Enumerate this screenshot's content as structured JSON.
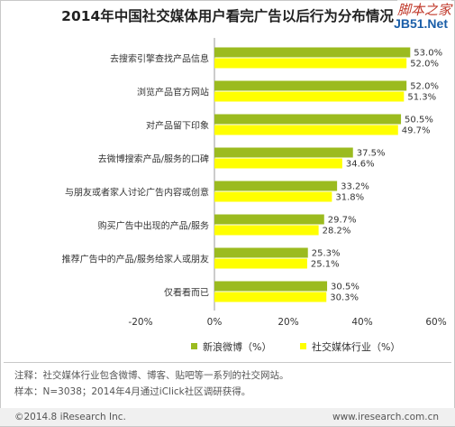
{
  "watermark": {
    "line1": "脚本之家",
    "line2": "JB51.Net"
  },
  "chart_data": {
    "type": "bar",
    "orientation": "horizontal",
    "title": "2014年中国社交媒体用户看完广告以后行为分布情况",
    "categories": [
      "去搜索引擎查找产品信息",
      "浏览产品官方网站",
      "对产品留下印象",
      "去微博搜索产品/服务的口碑",
      "与朋友或者家人讨论广告内容或创意",
      "购买广告中出现的产品/服务",
      "推荐广告中的产品/服务给家人或朋友",
      "仅看看而已"
    ],
    "series": [
      {
        "name": "新浪微博（%）",
        "color": "#9bbb1f",
        "values": [
          53.0,
          52.0,
          50.5,
          37.5,
          33.2,
          29.7,
          25.3,
          30.5
        ],
        "labels": [
          "53.0%",
          "52.0%",
          "50.5%",
          "37.5%",
          "33.2%",
          "29.7%",
          "25.3%",
          "30.5%"
        ]
      },
      {
        "name": "社交媒体行业（%）",
        "color": "#ffff00",
        "values": [
          52.0,
          51.3,
          49.7,
          34.6,
          31.8,
          28.2,
          25.1,
          30.3
        ],
        "labels": [
          "52.0%",
          "51.3%",
          "49.7%",
          "34.6%",
          "31.8%",
          "28.2%",
          "25.1%",
          "30.3%"
        ]
      }
    ],
    "xlim": [
      -20,
      60
    ],
    "xticks": [
      -20,
      0,
      20,
      40,
      60
    ],
    "xtick_labels": [
      "-20%",
      "0%",
      "20%",
      "40%",
      "60%"
    ],
    "legend_position": "bottom",
    "grid": false
  },
  "notes": {
    "note1": "注释：社交媒体行业包含微博、博客、贴吧等一系列的社交网站。",
    "note2": "样本：N=3038；2014年4月通过iClick社区调研获得。"
  },
  "footer": {
    "copyright": "©2014.8 iResearch Inc.",
    "website": "www.iresearch.com.cn"
  }
}
